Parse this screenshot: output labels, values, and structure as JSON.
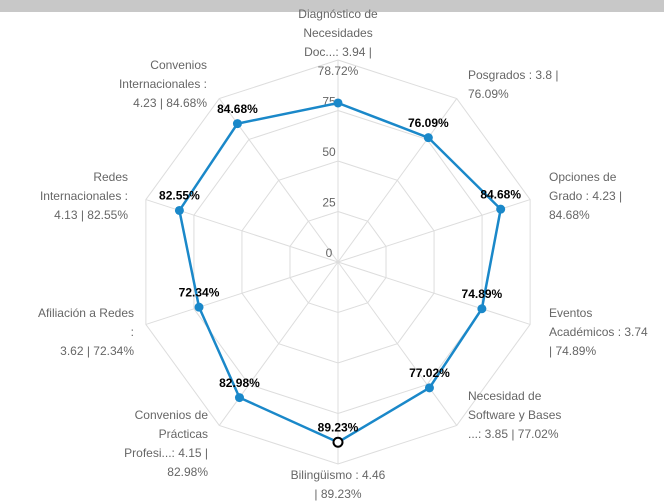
{
  "chart_data": {
    "type": "radar",
    "categories": [
      [
        "Diagnóstico de",
        "Necesidades",
        "Doc...: 3.94 |",
        "78.72%"
      ],
      [
        "Posgrados : 3.8 |",
        "76.09%"
      ],
      [
        "Opciones de",
        "Grado : 4.23 |",
        "84.68%"
      ],
      [
        "Eventos",
        "Académicos : 3.74",
        "| 74.89%"
      ],
      [
        "Necesidad de",
        "Software y Bases",
        "...: 3.85 | 77.02%"
      ],
      [
        "Bilingüismo : 4.46",
        "| 89.23%"
      ],
      [
        "Convenios de",
        "Prácticas",
        "Profesi...: 4.15 |",
        "82.98%"
      ],
      [
        "Afiliación a Redes",
        ":",
        "3.62 | 72.34%"
      ],
      [
        "Redes",
        "Internacionales :",
        "4.13 | 82.55%"
      ],
      [
        "Convenios",
        "Internacionales :",
        "4.23 | 84.68%"
      ]
    ],
    "values": [
      78.72,
      76.09,
      84.68,
      74.89,
      77.02,
      89.23,
      82.98,
      72.34,
      82.55,
      84.68
    ],
    "value_labels": [
      null,
      "76.09%",
      "84.68%",
      "74.89%",
      "77.02%",
      "89.23%",
      "82.98%",
      "72.34%",
      "82.55%",
      "84.68%"
    ],
    "color": "#1a88c9",
    "ylim": [
      0,
      100
    ],
    "yticks": [
      0,
      25,
      50,
      75
    ],
    "grid": true
  }
}
